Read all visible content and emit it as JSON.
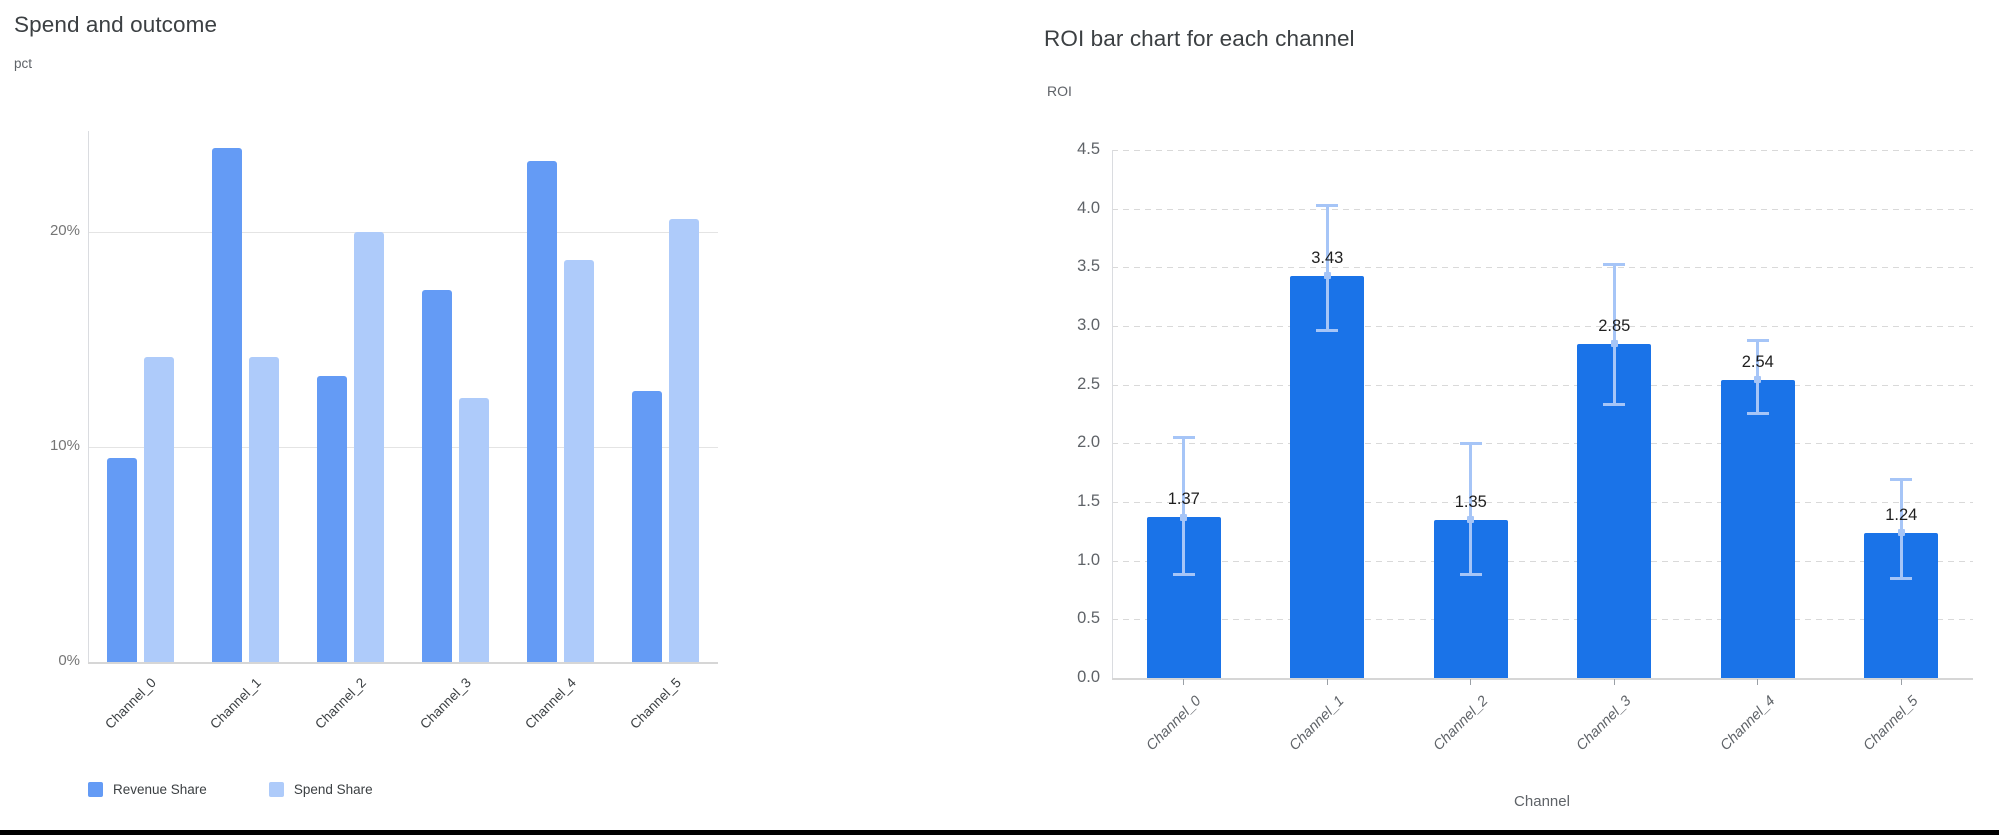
{
  "page": {
    "background": "#ffffff",
    "bottom_divider_color": "#000000"
  },
  "chart_data": [
    {
      "type": "bar",
      "title": "Spend and outcome",
      "ylabel": "pct",
      "xlabel": "",
      "categories": [
        "Channel_0",
        "Channel_1",
        "Channel_2",
        "Channel_3",
        "Channel_4",
        "Channel_5"
      ],
      "series": [
        {
          "name": "Revenue Share",
          "color": "#649bf5",
          "values": [
            9.5,
            23.9,
            13.3,
            17.3,
            23.3,
            12.6
          ]
        },
        {
          "name": "Spend Share",
          "color": "#aecbfa",
          "values": [
            14.2,
            14.2,
            20.0,
            12.3,
            18.7,
            20.6
          ]
        }
      ],
      "yticks": {
        "labels": [
          "0%",
          "10%",
          "20%"
        ],
        "values": [
          0,
          10,
          20
        ]
      },
      "ylim": [
        0,
        25
      ],
      "grid": "solid",
      "legend_position": "bottom"
    },
    {
      "type": "bar",
      "title": "ROI bar chart for each channel",
      "ylabel": "ROI",
      "xlabel": "Channel",
      "categories": [
        "Channel_0",
        "Channel_1",
        "Channel_2",
        "Channel_3",
        "Channel_4",
        "Channel_5"
      ],
      "values": [
        1.37,
        3.43,
        1.35,
        2.85,
        2.54,
        1.24
      ],
      "value_labels": [
        "1.37",
        "3.43",
        "1.35",
        "2.85",
        "2.54",
        "1.24"
      ],
      "error_low": [
        0.88,
        2.96,
        0.88,
        2.33,
        2.25,
        0.84
      ],
      "error_high": [
        2.05,
        4.03,
        2.0,
        3.53,
        2.88,
        1.7
      ],
      "bar_color": "#1a73e8",
      "error_color": "#a6c5f7",
      "yticks": {
        "labels": [
          "0.0",
          "0.5",
          "1.0",
          "1.5",
          "2.0",
          "2.5",
          "3.0",
          "3.5",
          "4.0",
          "4.5"
        ],
        "values": [
          0,
          0.5,
          1,
          1.5,
          2,
          2.5,
          3,
          3.5,
          4,
          4.5
        ]
      },
      "ylim": [
        0,
        4.5
      ],
      "grid": "dashed",
      "legend_position": "none"
    }
  ]
}
